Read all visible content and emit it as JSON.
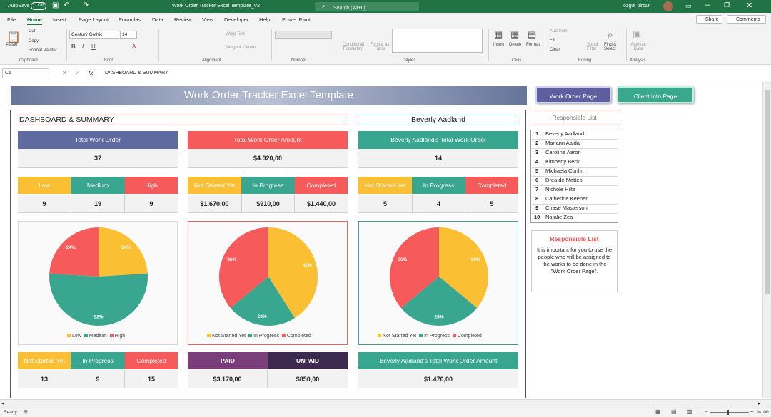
{
  "titlebar": {
    "autosave": "AutoSave",
    "autosave_state": "Off",
    "doc_title": "Work Order Tracker Excel Template_V2",
    "search_placeholder": "Search (Alt+Q)",
    "user": "özgür bircan"
  },
  "tabs": [
    "File",
    "Home",
    "Insert",
    "Page Layout",
    "Formulas",
    "Data",
    "Review",
    "View",
    "Developer",
    "Help",
    "Power Pivot"
  ],
  "share_label": "Share",
  "comments_label": "Comments",
  "ribbon": {
    "paste": "Paste",
    "cut": "Cut",
    "copy": "Copy",
    "format_painter": "Format Painter",
    "font_name": "Century Gothic",
    "font_size": "14",
    "wrap_text": "Wrap Text",
    "merge_center": "Merge & Center",
    "conditional_formatting": "Conditional Formatting",
    "format_as_table": "Format as Table",
    "insert": "Insert",
    "delete": "Delete",
    "format": "Format",
    "autosum": "AutoSum",
    "fill": "Fill",
    "clear": "Clear",
    "sort_filter": "Sort & Filter",
    "find_select": "Find & Select",
    "analyze_data": "Analyze Data",
    "groups": [
      "Clipboard",
      "Font",
      "Alignment",
      "Number",
      "Styles",
      "Cells",
      "Editing",
      "Analysis"
    ]
  },
  "formula": {
    "cell_ref": "C6",
    "content": "DASHBOARD & SUMMARY"
  },
  "sheet": {
    "banner_title": "Work Order Tracker Excel Template",
    "work_order_page_btn": "Work Order Page",
    "client_info_page_btn": "Client Info Page",
    "dashboard_title": "DASHBOARD & SUMMARY",
    "person_title": "Beverly Aadland",
    "total_work_order_label": "Total Work Order",
    "total_work_order_value": "37",
    "total_amount_label": "Total Work Order Amount",
    "total_amount_value": "$4.020,00",
    "person_total_label": "Beverly Aadland's Total Work Order",
    "person_total_value": "14",
    "priority": [
      {
        "label": "Low",
        "value": "9"
      },
      {
        "label": "Medium",
        "value": "19"
      },
      {
        "label": "High",
        "value": "9"
      }
    ],
    "amount_status": [
      {
        "label": "Not Started Yet",
        "value": "$1.670,00"
      },
      {
        "label": "In Progress",
        "value": "$910,00"
      },
      {
        "label": "Completed",
        "value": "$1.440,00"
      }
    ],
    "person_status": [
      {
        "label": "Not Started Yet",
        "value": "5"
      },
      {
        "label": "In Progress",
        "value": "4"
      },
      {
        "label": "Completed",
        "value": "5"
      }
    ],
    "count_status": [
      {
        "label": "Not Started Yet",
        "value": "13"
      },
      {
        "label": "In Progress",
        "value": "9"
      },
      {
        "label": "Completed",
        "value": "15"
      }
    ],
    "paid_label": "PAID",
    "paid_value": "$3.170,00",
    "unpaid_label": "UNPAID",
    "unpaid_value": "$850,00",
    "person_amount_label": "Beverly Aadland's Total Work Order Amount",
    "person_amount_value": "$1.470,00",
    "responsible_list_title": "Responsible List",
    "responsible_list": [
      {
        "n": "1",
        "name": "Beverly Aadland"
      },
      {
        "n": "2",
        "name": "Marlann Aalda"
      },
      {
        "n": "3",
        "name": "Caroline Aaron"
      },
      {
        "n": "4",
        "name": "Kimberly Beck"
      },
      {
        "n": "5",
        "name": "Michaela Conlin"
      },
      {
        "n": "6",
        "name": "Drea de Matteo"
      },
      {
        "n": "7",
        "name": "Nichole Hiltz"
      },
      {
        "n": "8",
        "name": "Catherine Keener"
      },
      {
        "n": "9",
        "name": "Chase Masterson"
      },
      {
        "n": "10",
        "name": "Natalie Zea"
      }
    ],
    "note_title": "Responsible List",
    "note_text": "It is important for you to use the people who will be assigned to the works to be done in the \"Work Order Page\"."
  },
  "colors": {
    "yellow": "#fbbf33",
    "teal": "#39a78f",
    "red": "#f65a5b",
    "slate": "#5e6aa0",
    "purple": "#7a3e7a",
    "dark": "#3b2a4d"
  },
  "chart_data": [
    {
      "type": "pie",
      "categories": [
        "Low",
        "Medium",
        "High"
      ],
      "values": [
        24,
        52,
        24
      ],
      "labels": [
        "24%",
        "52%",
        "24%"
      ]
    },
    {
      "type": "pie",
      "categories": [
        "Not Started Yet",
        "In Progress",
        "Completed"
      ],
      "values": [
        41,
        23,
        36
      ],
      "labels": [
        "41%",
        "23%",
        "36%"
      ]
    },
    {
      "type": "pie",
      "categories": [
        "Not Started Yet",
        "In Progress",
        "Completed"
      ],
      "values": [
        36,
        28,
        36
      ],
      "labels": [
        "36%",
        "28%",
        "36%"
      ]
    }
  ],
  "status": {
    "ready": "Ready",
    "zoom": "%100"
  }
}
